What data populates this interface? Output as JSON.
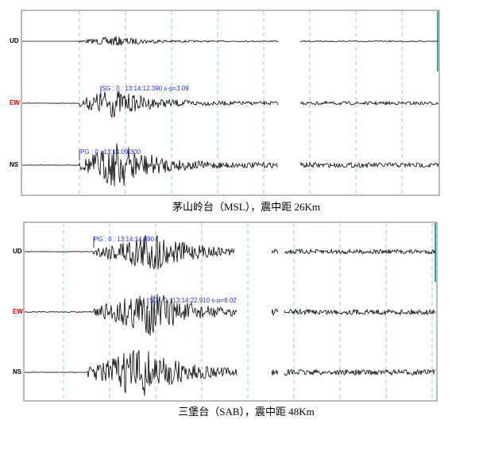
{
  "panels": [
    {
      "channels": [
        "UD",
        "EW",
        "NS"
      ],
      "annotations": [
        "SG : 0 : 13:14:12.390 s-p=3.09",
        "PG : 0 : 13:14:09.300"
      ],
      "caption": "茅山岭台（MSL），震中距 26Km"
    },
    {
      "channels": [
        "UD",
        "EW",
        "NS"
      ],
      "annotations": [
        "PG : 0 : 13:14:14.890",
        "SG : 0 : 13:14:22.910 s-p=8.02"
      ],
      "caption": "三堡台（SAB），震中距 48Km"
    }
  ]
}
